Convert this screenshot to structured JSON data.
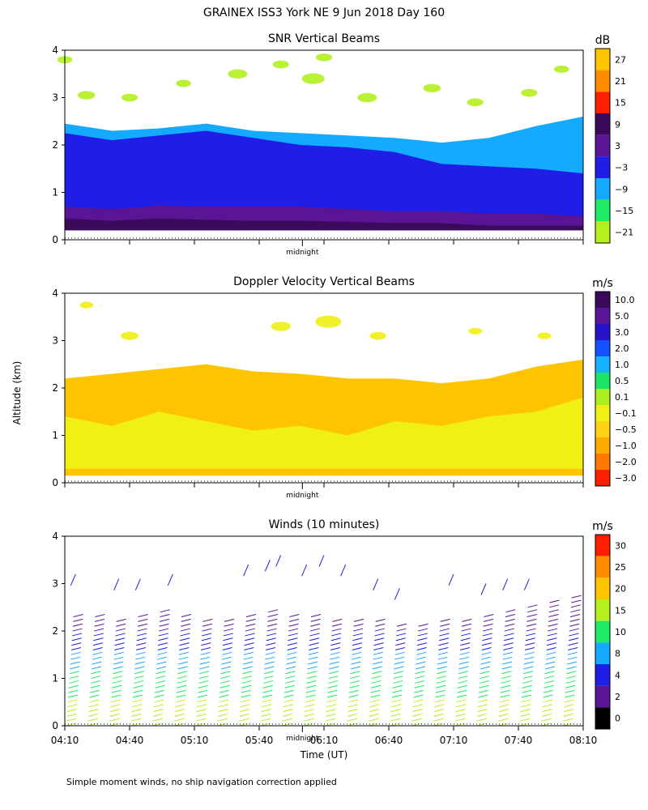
{
  "page_title": "GRAINEX ISS3 York NE   9 Jun 2018 Day 160",
  "shared_ylabel": "Altitude (km)",
  "footnote": "Simple moment winds, no ship navigation correction applied",
  "chart_data": [
    {
      "type": "heatmap",
      "title": "SNR Vertical Beams",
      "units": "dB",
      "x_range": [
        0,
        240
      ],
      "ylim": [
        0,
        4
      ],
      "yticks": [
        0,
        1,
        2,
        3,
        4
      ],
      "yticklabels": [
        "0",
        "1",
        "2",
        "3",
        "4"
      ],
      "midnight_label": "midnight",
      "midnight_x": 110,
      "colorbar": {
        "ticks": [
          "27",
          "21",
          "15",
          "9",
          "3",
          "−3",
          "−9",
          "−15",
          "−21"
        ],
        "colors": [
          "#ffc400",
          "#ff8c00",
          "#ff1e00",
          "#3c0a5a",
          "#5a1496",
          "#1e1ee6",
          "#14aaff",
          "#1eeb64",
          "#b4f01e"
        ]
      },
      "layers": [
        {
          "color_key": "cyan",
          "top": [
            2.45,
            2.3,
            2.35,
            2.45,
            2.3,
            2.25,
            2.2,
            2.15,
            2.05,
            2.15,
            2.4,
            2.6
          ],
          "bottom": 0.2
        },
        {
          "color_key": "blue",
          "top": [
            2.25,
            2.1,
            2.2,
            2.3,
            2.15,
            2.0,
            1.95,
            1.85,
            1.6,
            1.55,
            1.5,
            1.4
          ],
          "bottom": 0.2
        },
        {
          "color_key": "purple",
          "top": [
            0.7,
            0.65,
            0.72,
            0.7,
            0.7,
            0.7,
            0.65,
            0.6,
            0.6,
            0.55,
            0.55,
            0.5
          ],
          "bottom": 0.2
        },
        {
          "color_key": "dark",
          "top": [
            0.45,
            0.4,
            0.45,
            0.42,
            0.4,
            0.4,
            0.38,
            0.35,
            0.35,
            0.3,
            0.3,
            0.3
          ],
          "bottom": 0.2
        }
      ],
      "upper_patches": [
        {
          "x": 0,
          "y": 3.8,
          "r": 0.08
        },
        {
          "x": 10,
          "y": 3.05,
          "r": 0.12
        },
        {
          "x": 30,
          "y": 3.0,
          "r": 0.1
        },
        {
          "x": 55,
          "y": 3.3,
          "r": 0.08
        },
        {
          "x": 80,
          "y": 3.5,
          "r": 0.15
        },
        {
          "x": 100,
          "y": 3.7,
          "r": 0.1
        },
        {
          "x": 115,
          "y": 3.4,
          "r": 0.2
        },
        {
          "x": 120,
          "y": 3.85,
          "r": 0.1
        },
        {
          "x": 140,
          "y": 3.0,
          "r": 0.15
        },
        {
          "x": 170,
          "y": 3.2,
          "r": 0.12
        },
        {
          "x": 190,
          "y": 2.9,
          "r": 0.1
        },
        {
          "x": 215,
          "y": 3.1,
          "r": 0.1
        },
        {
          "x": 230,
          "y": 3.6,
          "r": 0.08
        }
      ]
    },
    {
      "type": "heatmap",
      "title": "Doppler Velocity Vertical Beams",
      "units": "m/s",
      "x_range": [
        0,
        240
      ],
      "ylim": [
        0,
        4
      ],
      "yticks": [
        0,
        1,
        2,
        3,
        4
      ],
      "yticklabels": [
        "0",
        "1",
        "2",
        "3",
        "4"
      ],
      "midnight_label": "midnight",
      "midnight_x": 110,
      "colorbar": {
        "ticks": [
          "10.0",
          "5.0",
          "3.0",
          "2.0",
          "1.0",
          "0.5",
          "0.1",
          "−0.1",
          "−0.5",
          "−1.0",
          "−2.0",
          "−3.0"
        ],
        "colors": [
          "#3c0a5a",
          "#5a1496",
          "#2814c8",
          "#1450ff",
          "#14b4ff",
          "#1ee664",
          "#aaf01e",
          "#f0f014",
          "#ffd214",
          "#ffaa00",
          "#ff7800",
          "#ff1e00"
        ]
      },
      "layers": [
        {
          "color_key": "orange",
          "top": [
            2.2,
            2.3,
            2.4,
            2.5,
            2.35,
            2.3,
            2.2,
            2.2,
            2.1,
            2.2,
            2.45,
            2.6
          ],
          "bottom": 0.15
        },
        {
          "color_key": "yellow",
          "top": [
            1.4,
            1.2,
            1.5,
            1.3,
            1.1,
            1.2,
            1.0,
            1.3,
            1.2,
            1.4,
            1.5,
            1.8
          ],
          "bottom": 0.3
        }
      ],
      "upper_patches": [
        {
          "x": 10,
          "y": 3.75,
          "r": 0.06
        },
        {
          "x": 30,
          "y": 3.1,
          "r": 0.12
        },
        {
          "x": 100,
          "y": 3.3,
          "r": 0.15
        },
        {
          "x": 122,
          "y": 3.4,
          "r": 0.25
        },
        {
          "x": 145,
          "y": 3.1,
          "r": 0.1
        },
        {
          "x": 190,
          "y": 3.2,
          "r": 0.06
        },
        {
          "x": 222,
          "y": 3.1,
          "r": 0.06
        }
      ]
    },
    {
      "type": "wind_barbs",
      "title": "Winds (10 minutes)",
      "units": "m/s",
      "xlabel": "Time (UT)",
      "x_range": [
        0,
        240
      ],
      "xticks": [
        0,
        30,
        60,
        90,
        120,
        150,
        180,
        210,
        240
      ],
      "xticklabels": [
        "04:10",
        "04:40",
        "05:10",
        "05:40",
        "06:10",
        "06:40",
        "07:10",
        "07:40",
        "08:10"
      ],
      "ylim": [
        0,
        4
      ],
      "yticks": [
        0,
        1,
        2,
        3,
        4
      ],
      "yticklabels": [
        "0",
        "1",
        "2",
        "3",
        "4"
      ],
      "midnight_label": "midnight",
      "midnight_x": 110,
      "colorbar": {
        "ticks": [
          "30",
          "25",
          "20",
          "15",
          "10",
          "8",
          "4",
          "2",
          "0"
        ],
        "colors": [
          "#ff1e00",
          "#ff8c00",
          "#ffc400",
          "#b4f01e",
          "#1eeb64",
          "#14aaff",
          "#1e1ee6",
          "#5a1496",
          "#000000"
        ]
      },
      "profiles_x": [
        5,
        15,
        25,
        35,
        45,
        55,
        65,
        75,
        85,
        95,
        105,
        115,
        125,
        135,
        145,
        155,
        165,
        175,
        185,
        195,
        205,
        215,
        225,
        235
      ],
      "profile_top": [
        2.4,
        2.4,
        2.3,
        2.4,
        2.5,
        2.4,
        2.3,
        2.3,
        2.4,
        2.5,
        2.4,
        2.4,
        2.3,
        2.3,
        2.3,
        2.2,
        2.2,
        2.3,
        2.3,
        2.4,
        2.5,
        2.6,
        2.7,
        2.8
      ],
      "upper_barbs": [
        {
          "x": 5,
          "y": 3.2
        },
        {
          "x": 25,
          "y": 3.1
        },
        {
          "x": 35,
          "y": 3.1
        },
        {
          "x": 50,
          "y": 3.2
        },
        {
          "x": 85,
          "y": 3.4
        },
        {
          "x": 95,
          "y": 3.5
        },
        {
          "x": 100,
          "y": 3.6
        },
        {
          "x": 112,
          "y": 3.4
        },
        {
          "x": 120,
          "y": 3.6
        },
        {
          "x": 130,
          "y": 3.4
        },
        {
          "x": 145,
          "y": 3.1
        },
        {
          "x": 155,
          "y": 2.9
        },
        {
          "x": 180,
          "y": 3.2
        },
        {
          "x": 195,
          "y": 3.0
        },
        {
          "x": 205,
          "y": 3.1
        },
        {
          "x": 215,
          "y": 3.1
        }
      ]
    }
  ]
}
